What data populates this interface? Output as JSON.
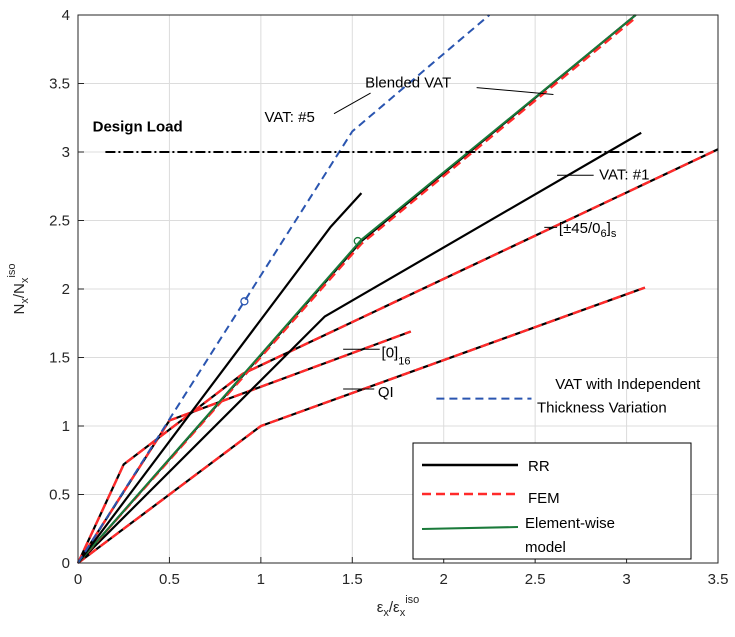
{
  "chart_data": {
    "type": "line",
    "title": "",
    "xlabel": {
      "main": "ε",
      "sub": "x",
      "sep": "/ε",
      "sub2": "x",
      "sup": "iso"
    },
    "ylabel": {
      "main": "N",
      "sub": "x",
      "sep": "/N",
      "sub2": "x",
      "sup": "iso"
    },
    "xlim": [
      0,
      3.5
    ],
    "ylim": [
      0,
      4
    ],
    "xticks": [
      0,
      0.5,
      1,
      1.5,
      2,
      2.5,
      3,
      3.5
    ],
    "xtick_labels": [
      "0",
      "0.5",
      "1",
      "1.5",
      "2",
      "2.5",
      "3",
      "3.5"
    ],
    "yticks": [
      0,
      0.5,
      1,
      1.5,
      2,
      2.5,
      3,
      3.5,
      4
    ],
    "ytick_labels": [
      "0",
      "0.5",
      "1",
      "1.5",
      "2",
      "2.5",
      "3",
      "3.5",
      "4"
    ],
    "grid": true,
    "colors": {
      "rr": "#000000",
      "fem": "#ff2a2a",
      "element": "#1a7a3a",
      "vat_indep": "#2a55b0",
      "design": "#000000"
    },
    "series": [
      {
        "name": "RR",
        "role": "rr",
        "x": [
          0,
          1,
          3.1
        ],
        "y": [
          0,
          1.0,
          2.01
        ]
      },
      {
        "name": "FEM",
        "role": "fem",
        "x": [
          0,
          1,
          3.1
        ],
        "y": [
          0,
          1.0,
          2.01
        ]
      },
      {
        "name": "RR",
        "role": "rr",
        "x": [
          0,
          0.5,
          1.82
        ],
        "y": [
          0,
          1.04,
          1.69
        ]
      },
      {
        "name": "FEM",
        "role": "fem",
        "x": [
          0,
          0.5,
          1.82
        ],
        "y": [
          0,
          1.04,
          1.69
        ]
      },
      {
        "name": "RR",
        "role": "rr",
        "x": [
          0,
          0.25,
          0.9,
          3.5
        ],
        "y": [
          0,
          0.72,
          1.38,
          3.02
        ]
      },
      {
        "name": "FEM",
        "role": "fem",
        "x": [
          0,
          0.25,
          0.9,
          3.5
        ],
        "y": [
          0,
          0.72,
          1.38,
          3.02
        ]
      },
      {
        "name": "RR",
        "role": "rr",
        "x": [
          0,
          1.35,
          3.08
        ],
        "y": [
          0,
          1.8,
          3.14
        ]
      },
      {
        "name": "RR",
        "role": "rr",
        "x": [
          0,
          1.55,
          3.05
        ],
        "y": [
          0,
          2.35,
          4.0
        ]
      },
      {
        "name": "FEM",
        "role": "fem",
        "x": [
          0,
          1.55,
          3.05
        ],
        "y": [
          0,
          2.33,
          3.98
        ]
      },
      {
        "name": "Element-wise model",
        "role": "element",
        "x": [
          0,
          1.55,
          3.05
        ],
        "y": [
          0,
          2.36,
          4.0
        ]
      },
      {
        "name": "RR",
        "role": "rr",
        "x": [
          0,
          1.38,
          1.55
        ],
        "y": [
          0,
          2.45,
          2.7
        ]
      },
      {
        "name": "VAT with Independent Thickness Variation",
        "role": "vat_indep",
        "x": [
          0,
          0.91,
          1.5,
          2.25
        ],
        "y": [
          0,
          1.91,
          3.15,
          4.0
        ]
      },
      {
        "name": "Design Load",
        "role": "design",
        "x": [
          0.15,
          3.42
        ],
        "y": [
          3.0,
          3.0
        ]
      }
    ],
    "markers": [
      {
        "x": 0.91,
        "y": 1.91,
        "role": "vat_indep"
      },
      {
        "x": 1.53,
        "y": 2.35,
        "role": "element"
      }
    ],
    "annotations": [
      {
        "text": "Design Load",
        "bold": true,
        "x": 0.08,
        "y": 3.15,
        "lx": null,
        "ly": null
      },
      {
        "text": "VAT: #5",
        "x": 1.02,
        "y": 3.22,
        "lx": 1.4,
        "ly": 3.28,
        "tx": 1.6,
        "ty": 3.43
      },
      {
        "text": "Blended VAT",
        "x": 1.57,
        "y": 3.47,
        "lx": 2.18,
        "ly": 3.47,
        "tx": 2.6,
        "ty": 3.42
      },
      {
        "text": "VAT: #1",
        "x": 2.85,
        "y": 2.8,
        "lx": 2.82,
        "ly": 2.83,
        "tx": 2.62,
        "ty": 2.83
      },
      {
        "text": "QI",
        "x": 1.64,
        "y": 1.21,
        "lx": 1.62,
        "ly": 1.27,
        "tx": 1.45,
        "ty": 1.27
      },
      {
        "text": "VAT with Independent",
        "x": 2.61,
        "y": 1.27,
        "lx": null
      },
      {
        "text": "Thickness Variation",
        "x": 2.51,
        "y": 1.1,
        "lx": null
      }
    ],
    "legend": {
      "position": "bottom-right",
      "items": [
        "RR",
        "FEM",
        "Element-wise",
        "model"
      ]
    },
    "label_45": {
      "bracket_open": "[±45/0",
      "sub_inner": "6",
      "bracket_close": "]",
      "sub": "s"
    },
    "label_016": {
      "bracket": "[0]",
      "sub": "16"
    },
    "indep_legend_label": "VAT with Independent Thickness Variation"
  }
}
